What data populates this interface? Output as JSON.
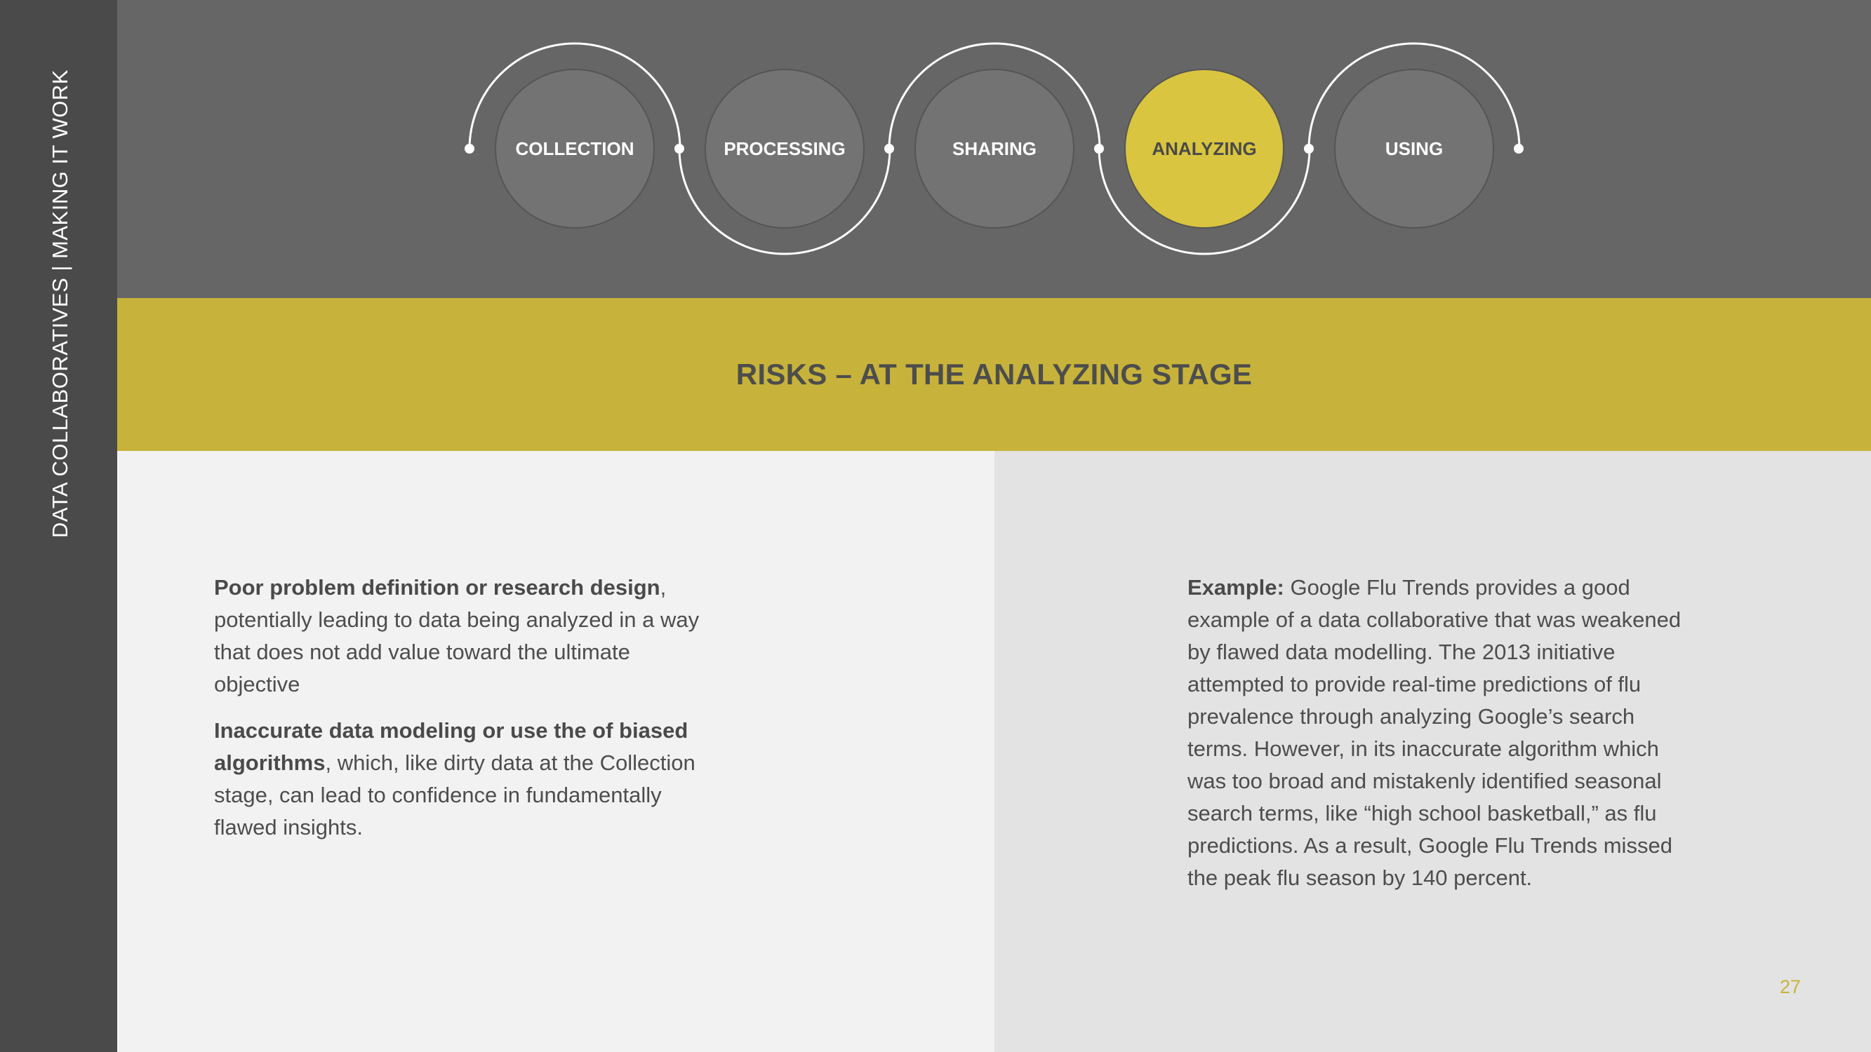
{
  "sidebar": {
    "text": "DATA COLLABORATIVES | MAKING IT WORK"
  },
  "stages": [
    {
      "label": "COLLECTION",
      "active": false
    },
    {
      "label": "PROCESSING",
      "active": false
    },
    {
      "label": "SHARING",
      "active": false
    },
    {
      "label": "ANALYZING",
      "active": true
    },
    {
      "label": "USING",
      "active": false
    }
  ],
  "colors": {
    "accent": "#d9c53f",
    "inactive_stage": "#737373",
    "band": "#c7b33b"
  },
  "title": "RISKS – AT THE ANALYZING STAGE",
  "left": {
    "p1_bold": "Poor problem definition or research design",
    "p1_rest": ", potentially leading to data being analyzed in a way that does not add value toward the ultimate objective",
    "p2_bold": "Inaccurate data modeling or use the of biased algorithms",
    "p2_rest": ", which, like dirty data at the Collection stage, can lead to confidence in fundamentally flawed insights."
  },
  "right": {
    "bold": "Example:",
    "text": " Google Flu Trends provides a good example of a data collaborative that was weakened by flawed data modelling. The 2013 initiative attempted to provide real-time predictions of flu prevalence through analyzing Google’s search terms. However, in its inaccurate algorithm which was too broad and mistakenly identified seasonal search terms, like “high school basketball,” as flu predictions. As a result, Google Flu Trends missed the peak flu season by 140 percent."
  },
  "page_number": "27"
}
